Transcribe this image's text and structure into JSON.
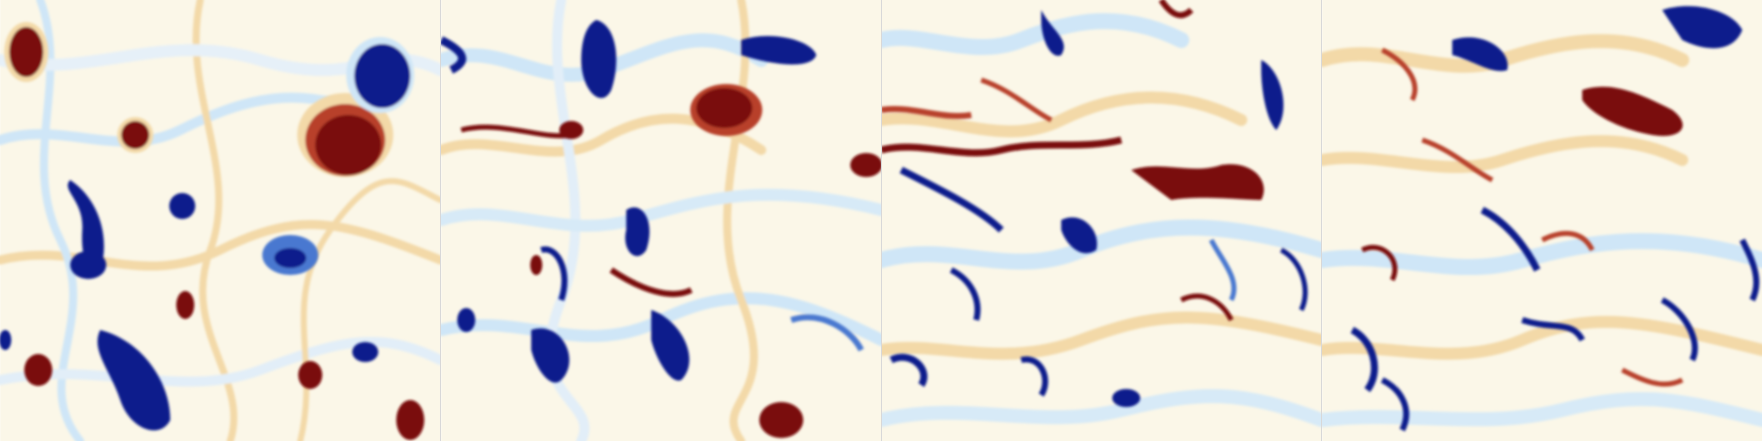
{
  "figure": {
    "description_visible_text": "",
    "panel_count": 4,
    "colormap": {
      "negative": "#0a1a8c",
      "neutral": "#fbf7e8",
      "positive": "#7a0a0a",
      "mid_blue": "#4a78d0",
      "light_blue": "#cfe6f7",
      "mid_red": "#b8402a",
      "light_red": "#f3d9a8"
    },
    "panels": [
      {
        "name": "panel-1"
      },
      {
        "name": "panel-2"
      },
      {
        "name": "panel-3"
      },
      {
        "name": "panel-4"
      }
    ]
  }
}
